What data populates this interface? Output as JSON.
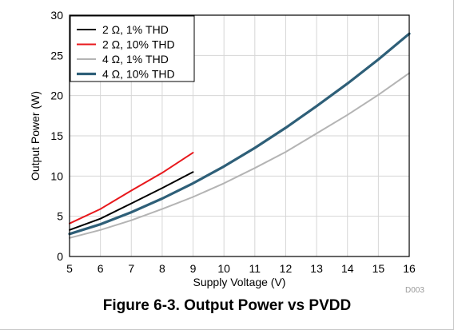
{
  "figure": {
    "caption": "Figure 6-3. Output Power vs PVDD",
    "code": "D003"
  },
  "chart_data": {
    "type": "line",
    "xlabel": "Supply Voltage (V)",
    "ylabel": "Output Power (W)",
    "xlim": [
      5,
      16
    ],
    "ylim": [
      0,
      30
    ],
    "xticks": [
      5,
      6,
      7,
      8,
      9,
      10,
      11,
      12,
      13,
      14,
      15,
      16
    ],
    "yticks": [
      0,
      5,
      10,
      15,
      20,
      25,
      30
    ],
    "grid": true,
    "legend_position": "top-left",
    "series": [
      {
        "name": "2 Ω, 1% THD",
        "color": "#000000",
        "x": [
          5,
          6,
          7,
          8,
          9
        ],
        "y": [
          3.3,
          4.7,
          6.6,
          8.5,
          10.5
        ]
      },
      {
        "name": "2 Ω, 10% THD",
        "color": "#e8181c",
        "x": [
          5,
          6,
          7,
          8,
          9
        ],
        "y": [
          4.1,
          5.9,
          8.2,
          10.4,
          12.9
        ]
      },
      {
        "name": "4 Ω, 1% THD",
        "color": "#b4b4b4",
        "x": [
          5,
          6,
          7,
          8,
          9,
          10,
          11,
          12,
          13,
          14,
          15,
          16
        ],
        "y": [
          2.3,
          3.3,
          4.5,
          5.9,
          7.4,
          9.1,
          11.0,
          13.0,
          15.3,
          17.6,
          20.1,
          22.8
        ]
      },
      {
        "name": "4 Ω, 10% THD",
        "color": "#2e5f78",
        "x": [
          5,
          6,
          7,
          8,
          9,
          10,
          11,
          12,
          13,
          14,
          15,
          16
        ],
        "y": [
          2.8,
          4.0,
          5.5,
          7.2,
          9.1,
          11.2,
          13.5,
          16.0,
          18.7,
          21.5,
          24.5,
          27.7
        ]
      }
    ]
  }
}
